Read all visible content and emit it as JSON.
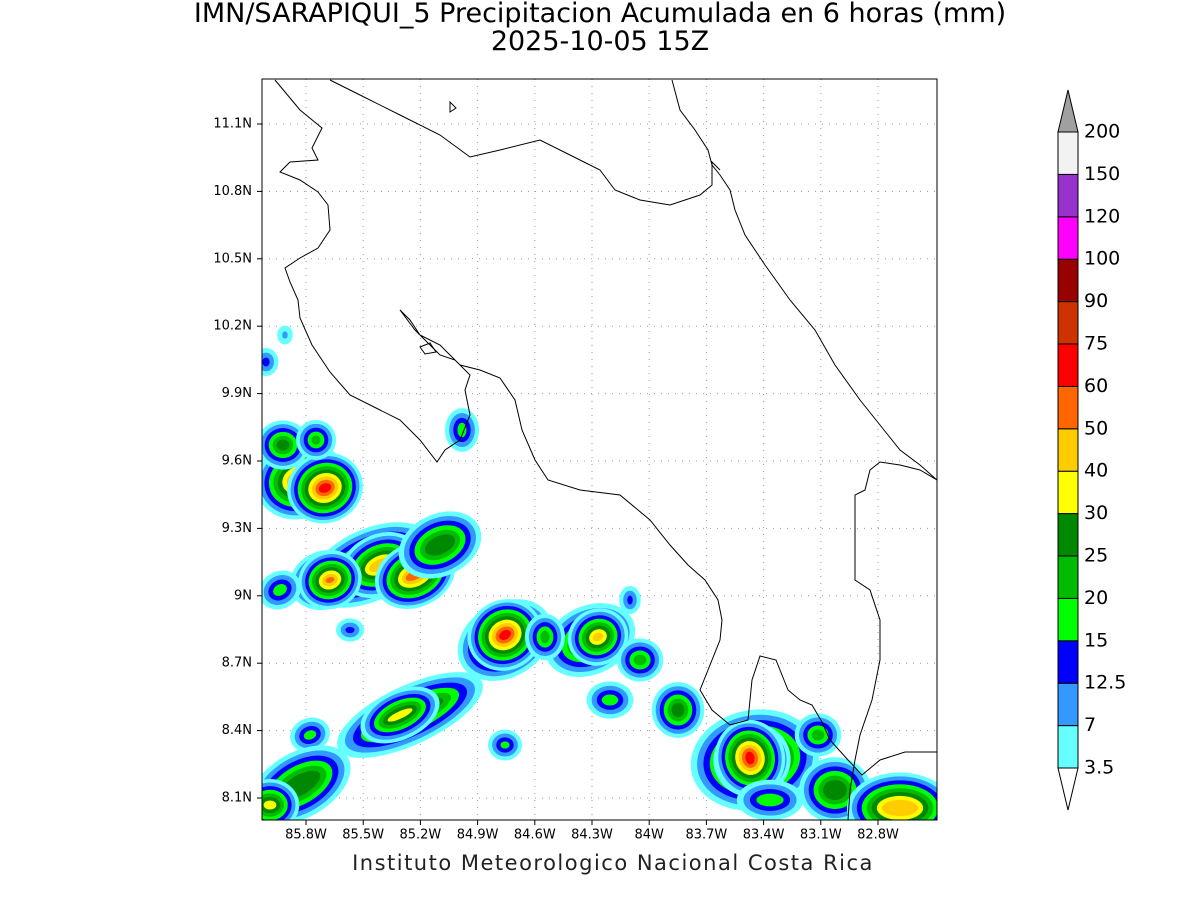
{
  "title": "IMN/SARAPIQUI_5 Precipitacion Acumulada en 6 horas (mm)",
  "subtitle": "2025-10-05 15Z",
  "lat_ticks": [
    "11.1N",
    "10.8N",
    "10.5N",
    "10.2N",
    "9.9N",
    "9.6N",
    "9.3N",
    "9N",
    "8.7N",
    "8.4N",
    "8.1N"
  ],
  "lon_ticks": [
    "85.8W",
    "85.5W",
    "85.2W",
    "84.9W",
    "84.6W",
    "84.3W",
    "84W",
    "83.7W",
    "83.4W",
    "83.1W",
    "82.8W"
  ],
  "colorbar": {
    "levels": [
      3.5,
      7,
      12.5,
      15,
      20,
      25,
      30,
      40,
      50,
      60,
      75,
      90,
      100,
      120,
      150,
      200
    ],
    "colors": [
      "#66ffff",
      "#3399ff",
      "#0000ff",
      "#00ff00",
      "#00bb00",
      "#008800",
      "#ffff00",
      "#ffcc00",
      "#ff6600",
      "#ff0000",
      "#cc3300",
      "#990000",
      "#ff00ff",
      "#9932cc",
      "#f2f2f2"
    ],
    "over_color": "#a0a0a0",
    "under_color": "#ffffff"
  },
  "footer": "Instituto Meteorologico Nacional Costa Rica"
}
